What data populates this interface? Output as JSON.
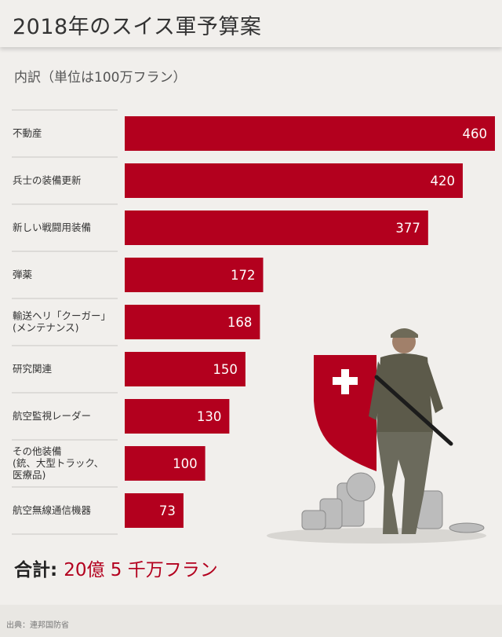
{
  "title": "2018年のスイス軍予算案",
  "subtitle": "内訳（単位は100万フラン）",
  "total": {
    "label": "合計:",
    "value": "20億 5 千万フラン"
  },
  "source": "出典：連邦国防省",
  "colors": {
    "bar": "#b3001e",
    "bar_text": "#ffffff"
  },
  "chart_data": {
    "type": "bar",
    "orientation": "horizontal",
    "categories": [
      [
        "不動産"
      ],
      [
        "兵士の装備更新"
      ],
      [
        "新しい戦闘用装備"
      ],
      [
        "弾薬"
      ],
      [
        "輸送ヘリ「クーガー」",
        "(メンテナンス)"
      ],
      [
        "研究関連"
      ],
      [
        "航空監視レーダー"
      ],
      [
        "その他装備",
        "(銃、大型トラック、",
        "医療品)"
      ],
      [
        "航空無線通信機器"
      ]
    ],
    "values": [
      460,
      420,
      377,
      172,
      168,
      150,
      130,
      100,
      73
    ],
    "data_labels": [
      "460",
      "420",
      "377",
      "172",
      "168",
      "150",
      "130",
      "100",
      "73"
    ],
    "xlim": [
      0,
      460
    ],
    "grid": false,
    "legend": "none"
  }
}
